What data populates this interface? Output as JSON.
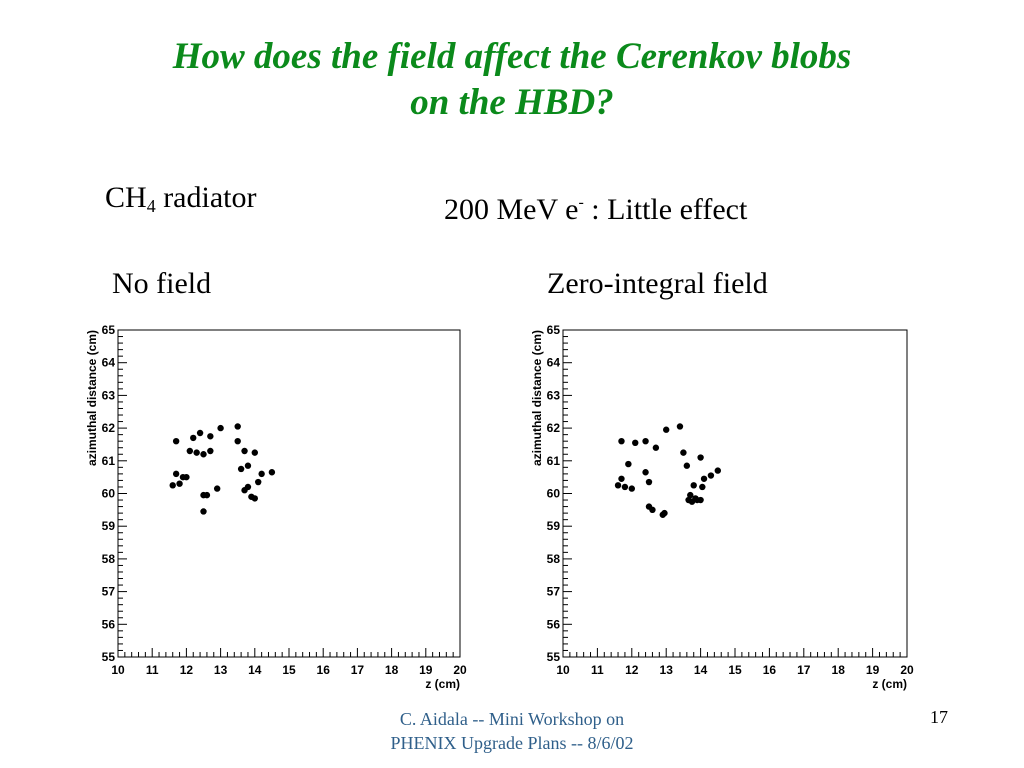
{
  "slide": {
    "title_line1": "How does the field affect the Cerenkov blobs",
    "title_line2": "on the HBD?",
    "radiator_prefix": "CH",
    "radiator_sub": "4",
    "radiator_suffix": " radiator",
    "energy_prefix": "200 MeV e",
    "energy_sup": "-",
    "energy_suffix": " : Little effect",
    "footer_line1": "C. Aidala -- Mini Workshop on",
    "footer_line2": "PHENIX Upgrade Plans -- 8/6/02",
    "page_number": "17",
    "title_color": "#0b8a1b",
    "footer_color": "#2f5f8a"
  },
  "chart_data": [
    {
      "type": "scatter",
      "label": "No field",
      "xlabel": "z (cm)",
      "ylabel": "azimuthal distance (cm)",
      "xlim": [
        10,
        20
      ],
      "ylim": [
        55,
        65
      ],
      "xticks": [
        "10",
        "11",
        "12",
        "13",
        "14",
        "15",
        "16",
        "17",
        "18",
        "19",
        "20"
      ],
      "yticks": [
        "55",
        "56",
        "57",
        "58",
        "59",
        "60",
        "61",
        "62",
        "63",
        "64",
        "65"
      ],
      "x": [
        11.6,
        11.7,
        11.7,
        11.8,
        11.9,
        12.0,
        12.1,
        12.2,
        12.3,
        12.4,
        12.5,
        12.5,
        12.5,
        12.6,
        12.7,
        12.7,
        12.9,
        13.0,
        13.5,
        13.5,
        13.6,
        13.7,
        13.7,
        13.8,
        13.8,
        13.9,
        14.0,
        14.0,
        14.1,
        14.2,
        14.5
      ],
      "y": [
        60.25,
        61.6,
        60.6,
        60.3,
        60.5,
        60.5,
        61.3,
        61.7,
        61.25,
        61.85,
        61.2,
        59.95,
        59.45,
        59.95,
        61.75,
        61.3,
        60.15,
        62.0,
        62.05,
        61.6,
        60.75,
        61.3,
        60.1,
        60.85,
        60.2,
        59.9,
        59.85,
        61.25,
        60.35,
        60.6,
        60.65
      ],
      "marker_color": "#000000"
    },
    {
      "type": "scatter",
      "label": "Zero-integral field",
      "xlabel": "z (cm)",
      "ylabel": "azimuthal distance (cm)",
      "xlim": [
        10,
        20
      ],
      "ylim": [
        55,
        65
      ],
      "xticks": [
        "10",
        "11",
        "12",
        "13",
        "14",
        "15",
        "16",
        "17",
        "18",
        "19",
        "20"
      ],
      "yticks": [
        "55",
        "56",
        "57",
        "58",
        "59",
        "60",
        "61",
        "62",
        "63",
        "64",
        "65"
      ],
      "x": [
        11.6,
        11.7,
        11.7,
        11.8,
        11.9,
        12.0,
        12.1,
        12.4,
        12.4,
        12.5,
        12.5,
        12.6,
        12.7,
        12.9,
        12.95,
        13.0,
        13.4,
        13.5,
        13.6,
        13.65,
        13.7,
        13.75,
        13.8,
        13.85,
        13.9,
        14.0,
        14.0,
        14.05,
        14.1,
        14.3,
        14.5
      ],
      "y": [
        60.25,
        60.45,
        61.6,
        60.2,
        60.9,
        60.15,
        61.55,
        61.6,
        60.65,
        59.6,
        60.35,
        59.5,
        61.4,
        59.35,
        59.4,
        61.95,
        62.05,
        61.25,
        60.85,
        59.8,
        59.95,
        59.75,
        60.25,
        59.85,
        59.8,
        59.8,
        61.1,
        60.2,
        60.45,
        60.55,
        60.7
      ],
      "marker_color": "#000000"
    }
  ]
}
